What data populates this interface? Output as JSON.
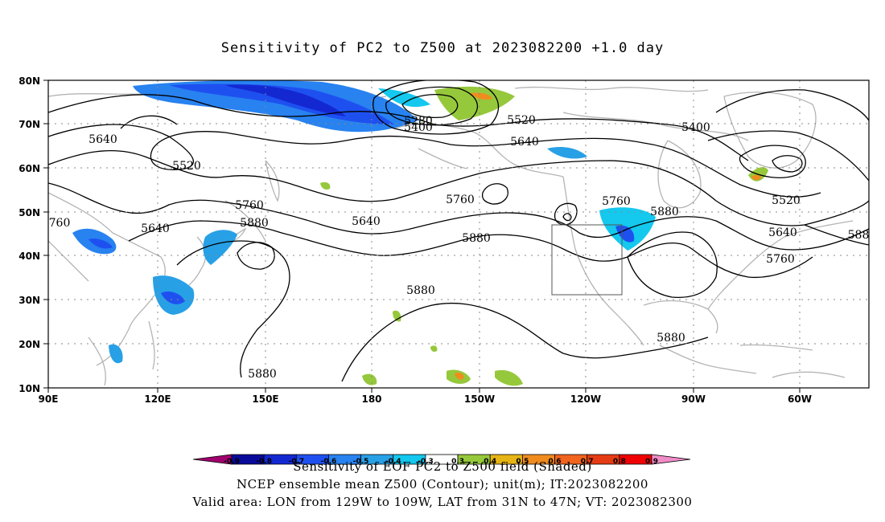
{
  "title": "Sensitivity of PC2 to Z500 at 2023082200 +1.0 day",
  "lat_ticks": [
    "80N",
    "70N",
    "60N",
    "50N",
    "40N",
    "30N",
    "20N",
    "10N"
  ],
  "lon_ticks": [
    "90E",
    "120E",
    "150E",
    "180",
    "150W",
    "120W",
    "90W",
    "60W"
  ],
  "contour_labels": [
    "5280",
    "5400",
    "5520",
    "5400",
    "5640",
    "5520",
    "5640",
    "5520",
    "5400",
    "760",
    "5640",
    "5760",
    "5880",
    "5640",
    "5760",
    "5880",
    "5760",
    "5880",
    "5520",
    "5640",
    "5760",
    "588",
    "5880",
    "5880",
    "5880"
  ],
  "colorbar": {
    "colors": [
      "#a0006e",
      "#0a0a9a",
      "#1428d2",
      "#1e50f0",
      "#2882f0",
      "#28a0e6",
      "#14c8ee",
      "#ffffff",
      "#96c83c",
      "#e6b414",
      "#f08c1e",
      "#f0641e",
      "#e63c14",
      "#f00000",
      "#f08cc8"
    ],
    "tick_labels": [
      "-0.9",
      "-0.8",
      "-0.7",
      "-0.6",
      "-0.5",
      "-0.4",
      "-0.3",
      "0.3",
      "0.4",
      "0.5",
      "0.6",
      "0.7",
      "0.8",
      "0.9"
    ]
  },
  "footer": {
    "line1": "Sensitivity of EOF PC2 to Z500 field (Shaded)",
    "line2": "NCEP ensemble mean Z500 (Contour); unit(m); IT:2023082200",
    "line3": "Valid area: LON from 129W to 109W, LAT from 31N to 47N; VT: 2023082300"
  }
}
